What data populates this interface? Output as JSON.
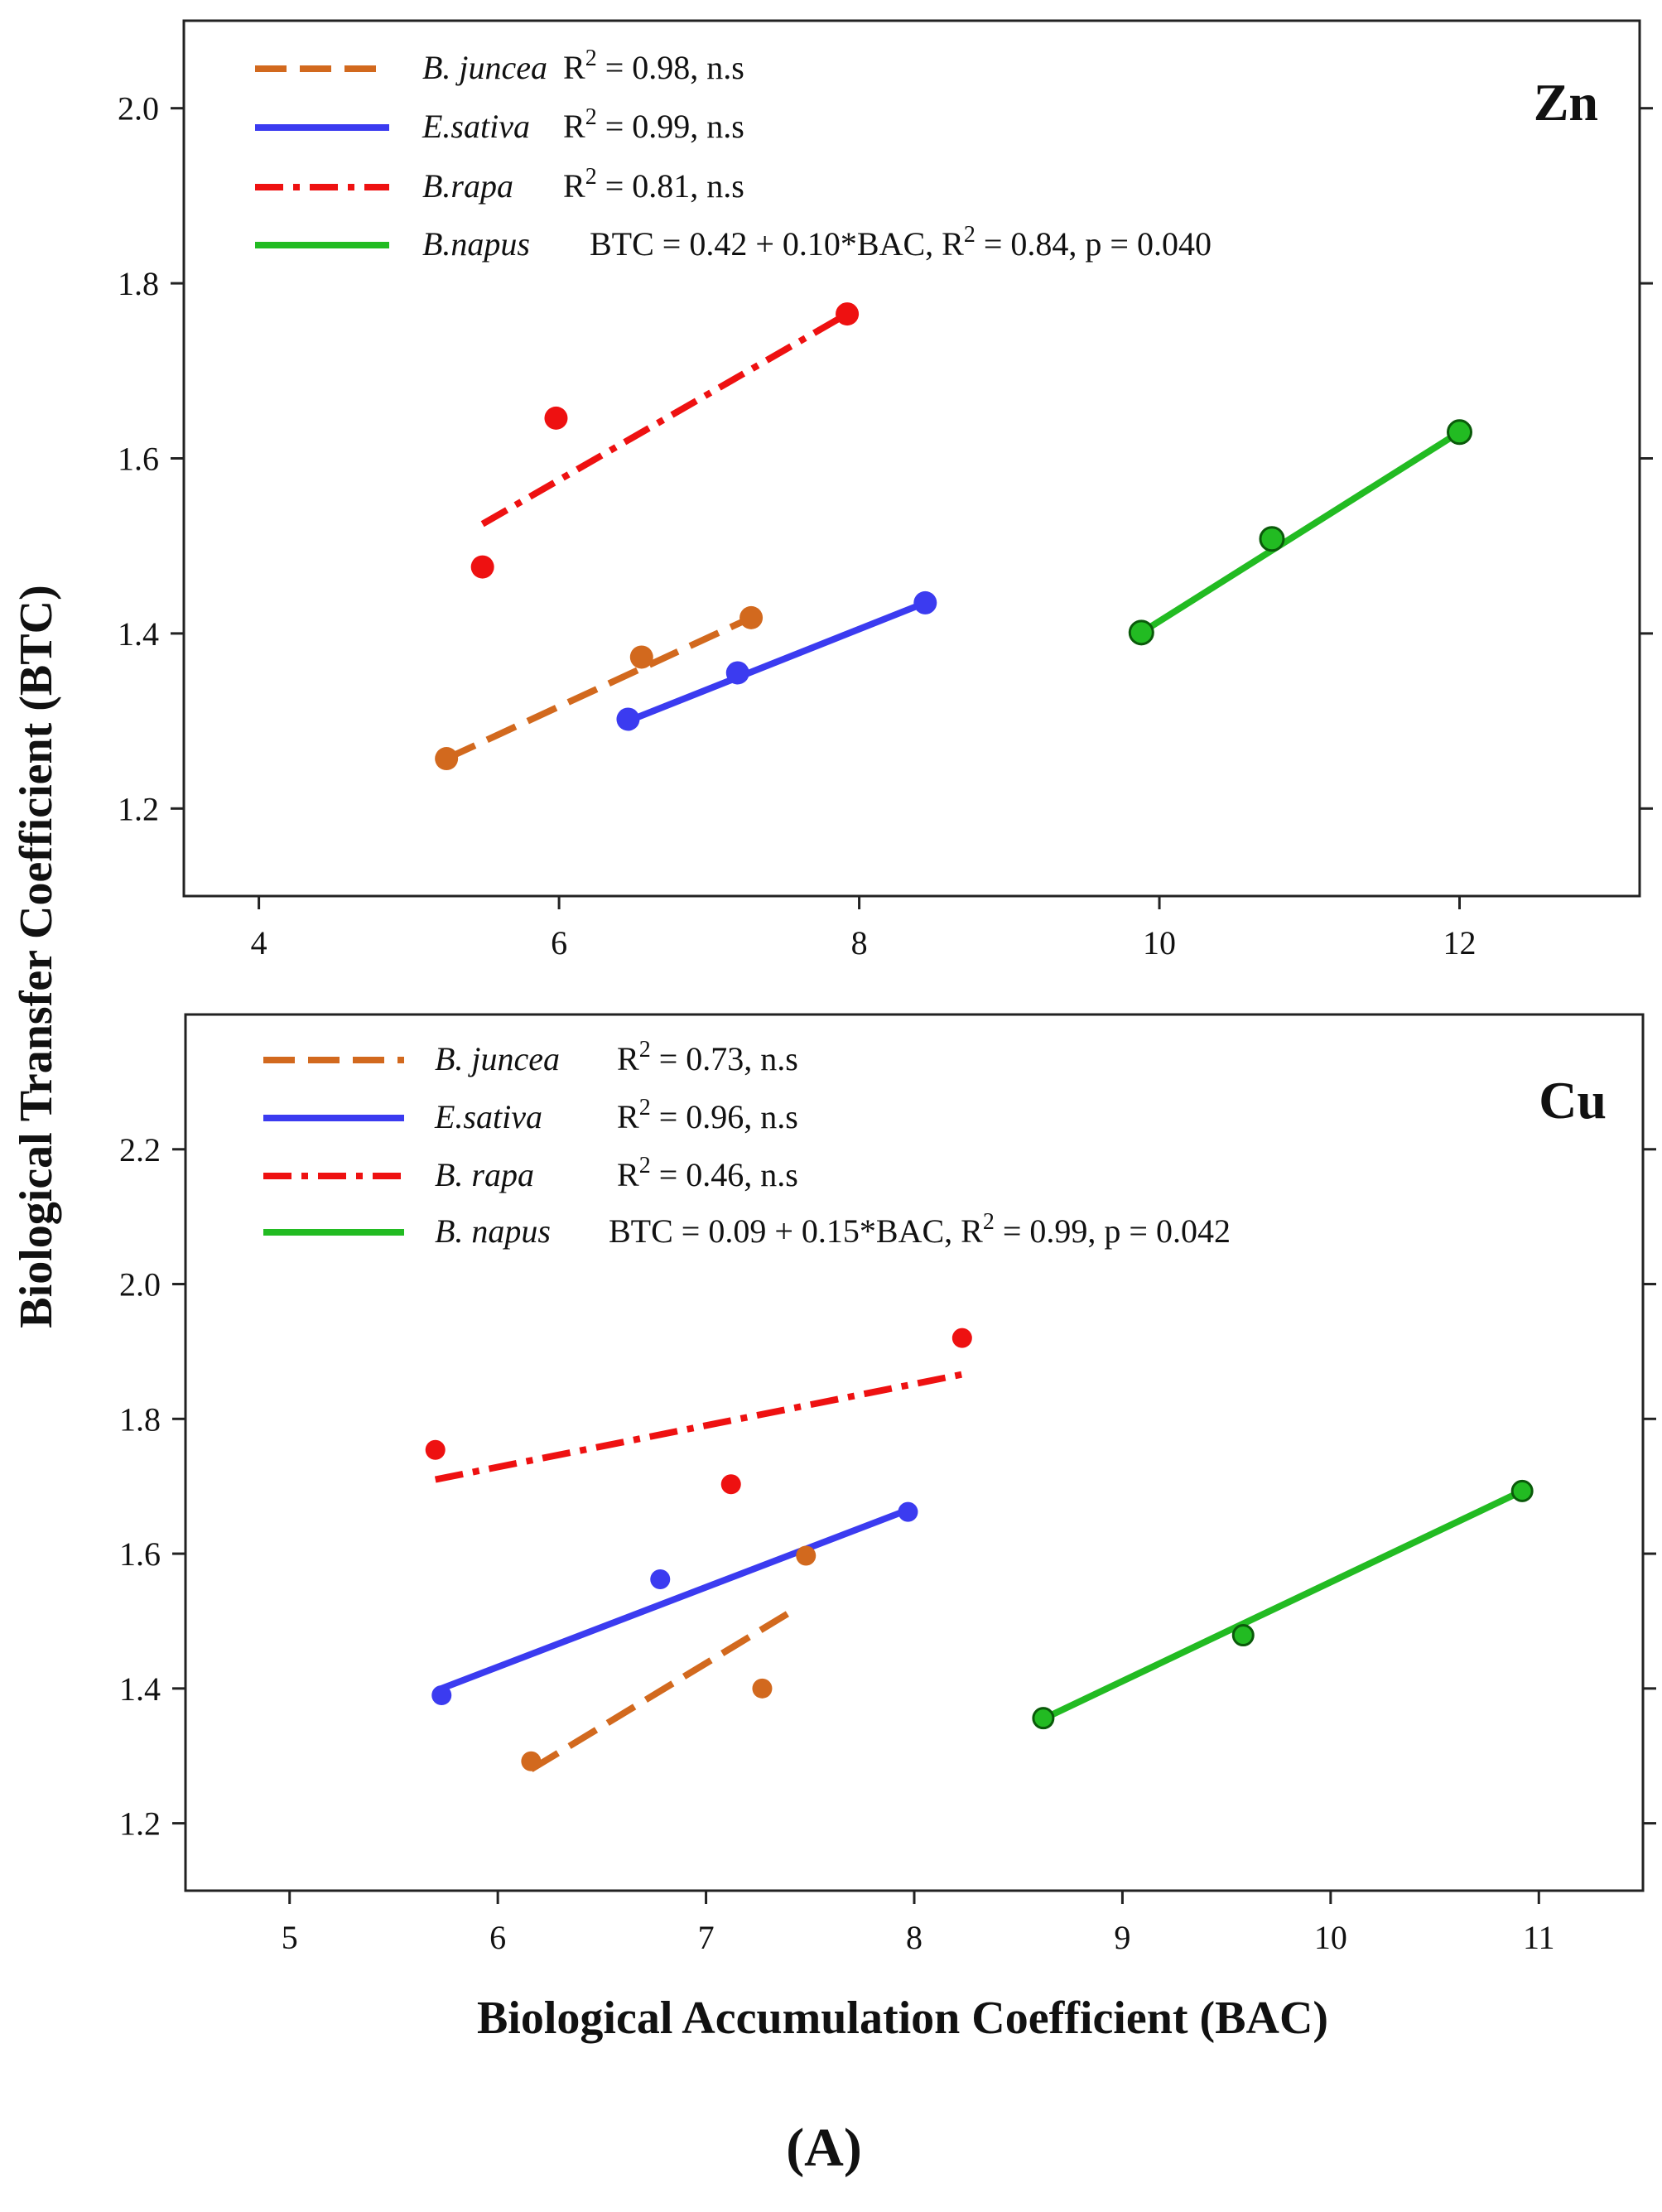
{
  "figure": {
    "label": "(A)",
    "x_axis_title": "Biological Accumulation Coefficient (BAC)",
    "y_axis_title": "Biological Transfer Coefficient (BTC)"
  },
  "chart_data": [
    {
      "type": "scatter",
      "panel": "Zn",
      "xlim": [
        3.5,
        13.2
      ],
      "ylim": [
        1.1,
        2.1
      ],
      "xticks": [
        4,
        6,
        8,
        10,
        12
      ],
      "yticks": [
        1.2,
        1.4,
        1.6,
        1.8,
        2.0
      ],
      "ytick_labels": [
        "1.2",
        "1.4",
        "1.6",
        "1.8",
        "2.0"
      ],
      "series": [
        {
          "name": "B. juncea",
          "stat": "R² = 0.98, n.s",
          "stat_base": "R",
          "stat_rest": " = 0.98, n.s",
          "color": "#d2691e",
          "style": "dashed",
          "points": [
            [
              5.25,
              1.257
            ],
            [
              6.55,
              1.373
            ],
            [
              7.28,
              1.418
            ]
          ],
          "fit": [
            [
              5.25,
              1.257
            ],
            [
              7.28,
              1.418
            ]
          ]
        },
        {
          "name": "E.sativa",
          "stat": "R² = 0.99, n.s",
          "stat_base": "R",
          "stat_rest": " = 0.99, n.s",
          "color": "#3b3bf0",
          "style": "solid",
          "points": [
            [
              6.46,
              1.302
            ],
            [
              7.19,
              1.355
            ],
            [
              8.44,
              1.435
            ]
          ],
          "fit": [
            [
              6.46,
              1.3
            ],
            [
              8.44,
              1.435
            ]
          ]
        },
        {
          "name": "B.rapa",
          "stat": "R² = 0.81, n.s",
          "stat_base": "R",
          "stat_rest": " = 0.81, n.s",
          "color": "#ee1111",
          "style": "dashdot",
          "points": [
            [
              5.49,
              1.476
            ],
            [
              5.98,
              1.646
            ],
            [
              7.92,
              1.765
            ]
          ],
          "fit": [
            [
              5.49,
              1.525
            ],
            [
              7.92,
              1.765
            ]
          ]
        },
        {
          "name": "B.napus",
          "stat": "BTC = 0.42 + 0.10*BAC,  R² = 0.84, p = 0.040",
          "stat_base": "BTC = 0.42 + 0.10*BAC,  R",
          "stat_rest": " = 0.84, p = 0.040",
          "color": "#22bb22",
          "style": "solid",
          "points": [
            [
              9.88,
              1.401
            ],
            [
              10.75,
              1.508
            ],
            [
              12.0,
              1.63
            ]
          ],
          "fit": [
            [
              9.88,
              1.401
            ],
            [
              12.0,
              1.63
            ]
          ]
        }
      ]
    },
    {
      "type": "scatter",
      "panel": "Cu",
      "xlim": [
        4.5,
        11.5
      ],
      "ylim": [
        1.1,
        2.4
      ],
      "xticks": [
        5,
        6,
        7,
        8,
        9,
        10,
        11
      ],
      "yticks": [
        1.2,
        1.4,
        1.6,
        1.8,
        2.0,
        2.2
      ],
      "ytick_labels": [
        "1.2",
        "1.4",
        "1.6",
        "1.8",
        "2.0",
        "2.2"
      ],
      "series": [
        {
          "name": "B. juncea",
          "stat": "R² = 0.73, n.s",
          "stat_base": "R",
          "stat_rest": " = 0.73, n.s",
          "color": "#d2691e",
          "style": "dashed",
          "points": [
            [
              6.16,
              1.292
            ],
            [
              7.27,
              1.4
            ],
            [
              7.48,
              1.597
            ]
          ],
          "fit": [
            [
              6.16,
              1.28
            ],
            [
              7.43,
              1.518
            ]
          ]
        },
        {
          "name": "E.sativa",
          "stat": "R² = 0.96, n.s",
          "stat_base": "R",
          "stat_rest": " = 0.96, n.s",
          "color": "#3b3bf0",
          "style": "solid",
          "points": [
            [
              5.73,
              1.39
            ],
            [
              6.78,
              1.562
            ],
            [
              7.97,
              1.662
            ]
          ],
          "fit": [
            [
              5.73,
              1.4
            ],
            [
              7.97,
              1.665
            ]
          ]
        },
        {
          "name": "B. rapa",
          "stat": "R² = 0.46, n.s",
          "stat_base": "R",
          "stat_rest": " = 0.46, n.s",
          "color": "#ee1111",
          "style": "dashdot",
          "points": [
            [
              5.7,
              1.754
            ],
            [
              7.12,
              1.703
            ],
            [
              8.23,
              1.92
            ]
          ],
          "fit": [
            [
              5.7,
              1.71
            ],
            [
              8.23,
              1.866
            ]
          ]
        },
        {
          "name": "B. napus",
          "stat": "BTC = 0.09 + 0.15*BAC, R² = 0.99, p = 0.042",
          "stat_base": "BTC = 0.09 + 0.15*BAC, R",
          "stat_rest": " = 0.99, p = 0.042",
          "color": "#22bb22",
          "style": "solid",
          "points": [
            [
              8.62,
              1.356
            ],
            [
              9.58,
              1.479
            ],
            [
              10.92,
              1.693
            ]
          ],
          "fit": [
            [
              8.62,
              1.355
            ],
            [
              10.92,
              1.693
            ]
          ]
        }
      ]
    }
  ]
}
